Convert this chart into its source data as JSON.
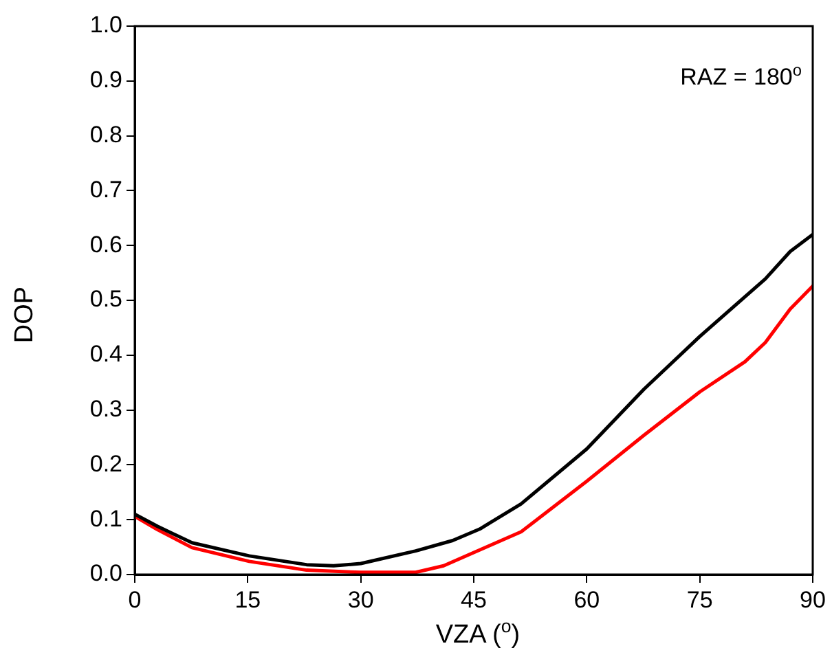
{
  "chart_data": {
    "type": "line",
    "xlabel": "VZA ($^{o}$)",
    "ylabel": "DOP",
    "annotations": [
      "RAZ = 180$^{o}$"
    ],
    "xlim": [
      0,
      90
    ],
    "xticks": [
      0,
      15,
      30,
      45,
      60,
      75,
      90
    ],
    "ylim": [
      0,
      1
    ],
    "yticks": [
      {
        "value": 0,
        "label": "0.0"
      },
      0.1,
      0.2,
      0.3,
      0.4,
      0.5,
      0.6,
      0.7,
      0.8,
      0.9,
      {
        "value": 1,
        "label": "1.0"
      }
    ],
    "grid": false,
    "legend": false,
    "marker": "none",
    "line_style": "solid",
    "series": [
      {
        "color": "#000000",
        "x": [
          0,
          3,
          7.6,
          15.2,
          22.8,
          26.4,
          30,
          37.3,
          42.2,
          45.8,
          51.3,
          60,
          67.6,
          75,
          79.8,
          83.7,
          87,
          90
        ],
        "values": [
          0.11,
          0.088,
          0.058,
          0.034,
          0.018,
          0.016,
          0.02,
          0.043,
          0.062,
          0.083,
          0.129,
          0.229,
          0.338,
          0.434,
          0.492,
          0.539,
          0.589,
          0.62
        ]
      },
      {
        "color": "#ff0000",
        "x": [
          0,
          3,
          7.6,
          15.2,
          22.8,
          30,
          37.3,
          41,
          45,
          51.3,
          60,
          67.6,
          75,
          81,
          83.7,
          87,
          90
        ],
        "values": [
          0.106,
          0.082,
          0.049,
          0.024,
          0.008,
          0.004,
          0.004,
          0.016,
          0.04,
          0.078,
          0.17,
          0.254,
          0.333,
          0.388,
          0.423,
          0.484,
          0.526
        ]
      }
    ]
  }
}
